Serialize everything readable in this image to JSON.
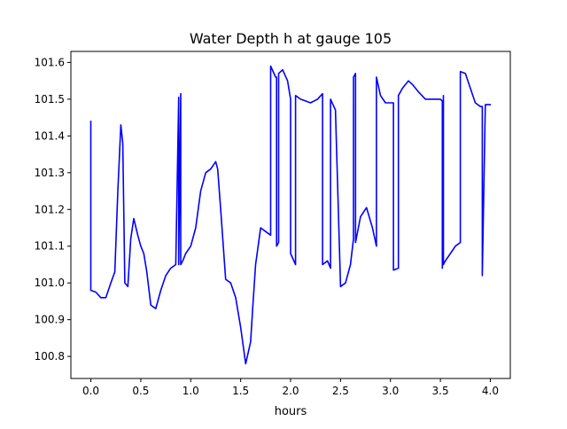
{
  "chart_data": {
    "type": "line",
    "title": "Water Depth h at gauge 105",
    "xlabel": "hours",
    "ylabel": "",
    "xlim": [
      -0.2,
      4.2
    ],
    "ylim": [
      100.74,
      101.63
    ],
    "xticks": [
      0.0,
      0.5,
      1.0,
      1.5,
      2.0,
      2.5,
      3.0,
      3.5,
      4.0
    ],
    "xtick_labels": [
      "0.0",
      "0.5",
      "1.0",
      "1.5",
      "2.0",
      "2.5",
      "3.0",
      "3.5",
      "4.0"
    ],
    "yticks": [
      100.8,
      100.9,
      101.0,
      101.1,
      101.2,
      101.3,
      101.4,
      101.5,
      101.6
    ],
    "ytick_labels": [
      "100.8",
      "100.9",
      "101.0",
      "101.1",
      "101.2",
      "101.3",
      "101.4",
      "101.5",
      "101.6"
    ],
    "grid": false,
    "series": [
      {
        "color": "#0000ff",
        "x": [
          0.0,
          0.0,
          0.05,
          0.1,
          0.15,
          0.2,
          0.24,
          0.27,
          0.3,
          0.32,
          0.34,
          0.37,
          0.4,
          0.43,
          0.47,
          0.5,
          0.53,
          0.56,
          0.6,
          0.65,
          0.7,
          0.75,
          0.8,
          0.85,
          0.88,
          0.88,
          0.9,
          0.9,
          0.92,
          0.95,
          1.0,
          1.05,
          1.1,
          1.15,
          1.2,
          1.25,
          1.27,
          1.3,
          1.35,
          1.4,
          1.45,
          1.5,
          1.55,
          1.6,
          1.62,
          1.65,
          1.7,
          1.75,
          1.8,
          1.8,
          1.85,
          1.86,
          1.86,
          1.88,
          1.88,
          1.92,
          1.97,
          2.0,
          2.0,
          2.05,
          2.05,
          2.1,
          2.2,
          2.27,
          2.32,
          2.32,
          2.37,
          2.4,
          2.4,
          2.45,
          2.45,
          2.5,
          2.55,
          2.6,
          2.63,
          2.63,
          2.65,
          2.65,
          2.7,
          2.76,
          2.82,
          2.86,
          2.86,
          2.9,
          2.95,
          3.0,
          3.03,
          3.03,
          3.08,
          3.08,
          3.12,
          3.18,
          3.22,
          3.28,
          3.35,
          3.42,
          3.5,
          3.52,
          3.52,
          3.53,
          3.53,
          3.55,
          3.6,
          3.65,
          3.7,
          3.7,
          3.75,
          3.8,
          3.85,
          3.9,
          3.92,
          3.92,
          3.95,
          4.0
        ],
        "y": [
          101.44,
          100.98,
          100.975,
          100.96,
          100.96,
          101.0,
          101.03,
          101.25,
          101.43,
          101.38,
          101.0,
          100.99,
          101.12,
          101.175,
          101.13,
          101.1,
          101.08,
          101.03,
          100.94,
          100.93,
          100.98,
          101.02,
          101.04,
          101.05,
          101.505,
          101.05,
          101.515,
          101.05,
          101.06,
          101.08,
          101.1,
          101.15,
          101.25,
          101.3,
          101.31,
          101.33,
          101.31,
          101.2,
          101.01,
          101.0,
          100.96,
          100.88,
          100.78,
          100.84,
          100.93,
          101.05,
          101.15,
          101.14,
          101.13,
          101.59,
          101.56,
          101.56,
          101.1,
          101.11,
          101.57,
          101.58,
          101.55,
          101.5,
          101.08,
          101.05,
          101.51,
          101.5,
          101.49,
          101.5,
          101.515,
          101.05,
          101.06,
          101.04,
          101.5,
          101.47,
          101.465,
          100.99,
          101.0,
          101.05,
          101.12,
          101.56,
          101.57,
          101.11,
          101.18,
          101.205,
          101.15,
          101.1,
          101.56,
          101.51,
          101.49,
          101.49,
          101.49,
          101.035,
          101.04,
          101.51,
          101.53,
          101.55,
          101.54,
          101.52,
          101.5,
          101.5,
          101.5,
          101.495,
          101.04,
          101.51,
          101.05,
          101.06,
          101.08,
          101.1,
          101.11,
          101.575,
          101.57,
          101.53,
          101.49,
          101.48,
          101.48,
          101.02,
          101.485,
          101.485
        ]
      }
    ]
  }
}
